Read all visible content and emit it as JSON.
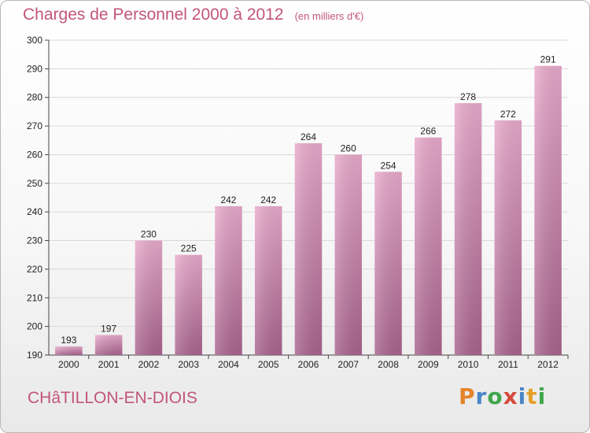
{
  "header": {
    "title": "Charges de Personnel 2000 à 2012",
    "unit": "(en milliers d'€)"
  },
  "footer": {
    "place": "CHâTILLON-EN-DIOIS",
    "logo": "Proxiti"
  },
  "colors": {
    "title": "#c2557d",
    "bar_top": "#e8aacb",
    "bar_bottom": "#a8638d",
    "grid": "#d9d9d9"
  },
  "chart_data": {
    "type": "bar",
    "title": "Charges de Personnel 2000 à 2012",
    "subtitle": "(en milliers d'€)",
    "categories": [
      "2000",
      "2001",
      "2002",
      "2003",
      "2004",
      "2005",
      "2006",
      "2007",
      "2008",
      "2009",
      "2010",
      "2011",
      "2012"
    ],
    "values": [
      193,
      197,
      230,
      225,
      242,
      242,
      264,
      260,
      254,
      266,
      278,
      272,
      291
    ],
    "ylim": [
      190,
      300
    ],
    "yticks": [
      190,
      200,
      210,
      220,
      230,
      240,
      250,
      260,
      270,
      280,
      290,
      300
    ],
    "grid": true,
    "data_labels": true
  }
}
